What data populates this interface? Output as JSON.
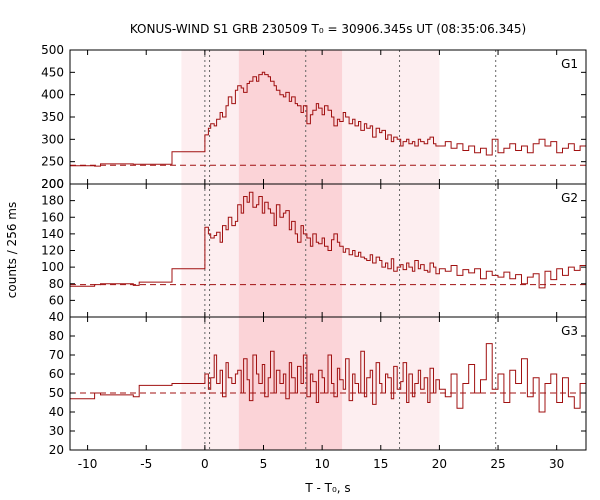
{
  "chart_data": {
    "type": "line",
    "title": "KONUS-WIND S1 GRB 230509 T₀ = 30906.345s UT (08:35:06.345)",
    "xlabel": "T - T₀, s",
    "ylabel": "counts / 256 ms",
    "xlim": [
      -11.5,
      32.5
    ],
    "x_ticks": [
      -10,
      -5,
      0,
      5,
      10,
      15,
      20,
      25,
      30
    ],
    "shaded_intervals": [
      {
        "range": [
          2.9,
          11.7
        ],
        "level": "dark"
      },
      {
        "range": [
          -2.0,
          20.0
        ],
        "level": "light"
      }
    ],
    "dotted_verticals": [
      0.0,
      0.4,
      8.6,
      16.6,
      24.8
    ],
    "color": "#a01010",
    "panels": [
      {
        "name": "G1",
        "ylim": [
          200,
          500
        ],
        "y_ticks": [
          200,
          250,
          300,
          350,
          400,
          450,
          500
        ],
        "background_level": 242,
        "x": [
          -11.5,
          -9.4,
          -8.9,
          -6.1,
          -5.6,
          -2.8,
          -0.4,
          0.0,
          0.3,
          0.5,
          0.8,
          1.0,
          1.3,
          1.5,
          1.8,
          2.0,
          2.3,
          2.6,
          2.8,
          3.1,
          3.3,
          3.6,
          3.8,
          4.1,
          4.4,
          4.6,
          4.9,
          5.1,
          5.4,
          5.6,
          5.9,
          6.1,
          6.4,
          6.7,
          6.9,
          7.2,
          7.4,
          7.7,
          7.9,
          8.2,
          8.4,
          8.7,
          9.0,
          9.2,
          9.5,
          9.7,
          10.0,
          10.2,
          10.5,
          10.8,
          11.0,
          11.3,
          11.5,
          11.8,
          12.0,
          12.3,
          12.6,
          12.8,
          13.1,
          13.3,
          13.6,
          13.8,
          14.1,
          14.3,
          14.6,
          14.9,
          15.1,
          15.4,
          15.6,
          15.9,
          16.1,
          16.4,
          16.7,
          16.9,
          17.2,
          17.4,
          17.7,
          17.9,
          18.2,
          18.4,
          18.7,
          19.0,
          19.2,
          19.5,
          19.7,
          20.0,
          20.5,
          21.0,
          21.5,
          22.0,
          22.5,
          23.0,
          23.5,
          24.0,
          24.5,
          25.0,
          25.5,
          26.0,
          26.5,
          27.0,
          27.5,
          28.0,
          28.5,
          29.0,
          29.5,
          30.0,
          30.5,
          31.0,
          31.5,
          32.0
        ],
        "values": [
          241,
          240,
          245,
          244,
          244,
          272,
          272,
          310,
          325,
          335,
          330,
          345,
          360,
          350,
          375,
          395,
          380,
          410,
          420,
          415,
          405,
          425,
          430,
          440,
          430,
          445,
          450,
          445,
          440,
          430,
          420,
          410,
          400,
          395,
          405,
          385,
          395,
          380,
          375,
          360,
          375,
          335,
          355,
          365,
          380,
          370,
          355,
          375,
          365,
          350,
          330,
          345,
          340,
          360,
          350,
          335,
          345,
          330,
          340,
          320,
          335,
          325,
          330,
          305,
          325,
          315,
          320,
          300,
          310,
          295,
          305,
          300,
          285,
          295,
          300,
          290,
          295,
          285,
          300,
          295,
          290,
          300,
          305,
          290,
          285,
          285,
          295,
          280,
          290,
          275,
          285,
          270,
          280,
          265,
          300,
          270,
          280,
          290,
          275,
          285,
          270,
          290,
          300,
          285,
          295,
          270,
          280,
          290,
          275,
          285
        ]
      },
      {
        "name": "G2",
        "ylim": [
          40,
          200
        ],
        "y_ticks": [
          40,
          60,
          80,
          100,
          120,
          140,
          160,
          180,
          200
        ],
        "background_level": 79,
        "x": [
          -11.5,
          -9.4,
          -8.9,
          -6.1,
          -5.6,
          -2.8,
          -0.4,
          0.0,
          0.3,
          0.5,
          0.8,
          1.0,
          1.3,
          1.5,
          1.8,
          2.0,
          2.3,
          2.6,
          2.8,
          3.1,
          3.3,
          3.6,
          3.8,
          4.1,
          4.4,
          4.6,
          4.9,
          5.1,
          5.4,
          5.6,
          5.9,
          6.1,
          6.4,
          6.7,
          6.9,
          7.2,
          7.4,
          7.7,
          7.9,
          8.2,
          8.4,
          8.7,
          9.0,
          9.2,
          9.5,
          9.7,
          10.0,
          10.2,
          10.5,
          10.8,
          11.0,
          11.3,
          11.5,
          11.8,
          12.0,
          12.3,
          12.6,
          12.8,
          13.1,
          13.3,
          13.6,
          13.8,
          14.1,
          14.3,
          14.6,
          14.9,
          15.1,
          15.4,
          15.6,
          15.9,
          16.1,
          16.4,
          16.7,
          16.9,
          17.2,
          17.4,
          17.7,
          17.9,
          18.2,
          18.4,
          18.7,
          19.0,
          19.2,
          19.5,
          19.7,
          20.0,
          20.5,
          21.0,
          21.5,
          22.0,
          22.5,
          23.0,
          23.5,
          24.0,
          24.5,
          25.0,
          25.5,
          26.0,
          26.5,
          27.0,
          27.5,
          28.0,
          28.5,
          29.0,
          29.5,
          30.0,
          30.5,
          31.0,
          31.5,
          32.0
        ],
        "values": [
          77,
          79,
          80,
          78,
          82,
          98,
          98,
          148,
          140,
          135,
          138,
          142,
          130,
          150,
          145,
          160,
          150,
          155,
          175,
          165,
          185,
          178,
          190,
          172,
          175,
          185,
          165,
          178,
          170,
          165,
          150,
          175,
          160,
          165,
          168,
          145,
          155,
          140,
          130,
          150,
          140,
          135,
          125,
          140,
          130,
          128,
          135,
          125,
          120,
          133,
          140,
          130,
          125,
          118,
          122,
          115,
          120,
          113,
          118,
          112,
          110,
          108,
          115,
          105,
          112,
          108,
          100,
          105,
          98,
          110,
          95,
          100,
          103,
          97,
          105,
          100,
          95,
          108,
          98,
          103,
          96,
          94,
          105,
          100,
          92,
          98,
          95,
          102,
          90,
          97,
          93,
          98,
          86,
          95,
          90,
          88,
          94,
          86,
          91,
          80,
          88,
          92,
          75,
          95,
          85,
          98,
          90,
          100,
          96,
          102
        ]
      },
      {
        "name": "G3",
        "ylim": [
          20,
          90
        ],
        "y_ticks": [
          20,
          30,
          40,
          50,
          60,
          70,
          80
        ],
        "background_level": 50,
        "x": [
          -11.5,
          -9.4,
          -8.9,
          -6.1,
          -5.6,
          -2.8,
          -0.4,
          0.0,
          0.3,
          0.5,
          0.8,
          1.0,
          1.3,
          1.5,
          1.8,
          2.0,
          2.3,
          2.6,
          2.8,
          3.1,
          3.3,
          3.6,
          3.8,
          4.1,
          4.4,
          4.6,
          4.9,
          5.1,
          5.4,
          5.6,
          5.9,
          6.1,
          6.4,
          6.7,
          6.9,
          7.2,
          7.4,
          7.7,
          7.9,
          8.2,
          8.4,
          8.7,
          9.0,
          9.2,
          9.5,
          9.7,
          10.0,
          10.2,
          10.5,
          10.8,
          11.0,
          11.3,
          11.5,
          11.8,
          12.0,
          12.3,
          12.6,
          12.8,
          13.1,
          13.3,
          13.6,
          13.8,
          14.1,
          14.3,
          14.6,
          14.9,
          15.1,
          15.4,
          15.6,
          15.9,
          16.1,
          16.4,
          16.7,
          16.9,
          17.2,
          17.4,
          17.7,
          17.9,
          18.2,
          18.4,
          18.7,
          19.0,
          19.2,
          19.5,
          19.7,
          20.0,
          20.5,
          21.0,
          21.5,
          22.0,
          22.5,
          23.0,
          23.5,
          24.0,
          24.5,
          25.0,
          25.5,
          26.0,
          26.5,
          27.0,
          27.5,
          28.0,
          28.5,
          29.0,
          29.5,
          30.0,
          30.5,
          31.0,
          31.5,
          32.0
        ],
        "values": [
          47,
          50,
          49,
          48,
          54,
          55,
          55,
          60,
          52,
          58,
          70,
          55,
          62,
          48,
          66,
          58,
          55,
          60,
          62,
          50,
          68,
          57,
          46,
          70,
          60,
          55,
          65,
          48,
          58,
          72,
          50,
          62,
          55,
          60,
          47,
          66,
          58,
          50,
          64,
          55,
          70,
          48,
          60,
          56,
          45,
          62,
          58,
          50,
          70,
          55,
          48,
          63,
          57,
          52,
          68,
          46,
          60,
          55,
          50,
          72,
          48,
          58,
          62,
          44,
          66,
          55,
          50,
          60,
          58,
          47,
          64,
          52,
          56,
          66,
          45,
          60,
          48,
          55,
          62,
          52,
          58,
          45,
          63,
          50,
          57,
          52,
          48,
          60,
          42,
          55,
          65,
          50,
          57,
          76,
          52,
          60,
          45,
          62,
          55,
          68,
          48,
          58,
          40,
          55,
          60,
          45,
          58,
          48,
          42,
          55
        ]
      }
    ]
  }
}
